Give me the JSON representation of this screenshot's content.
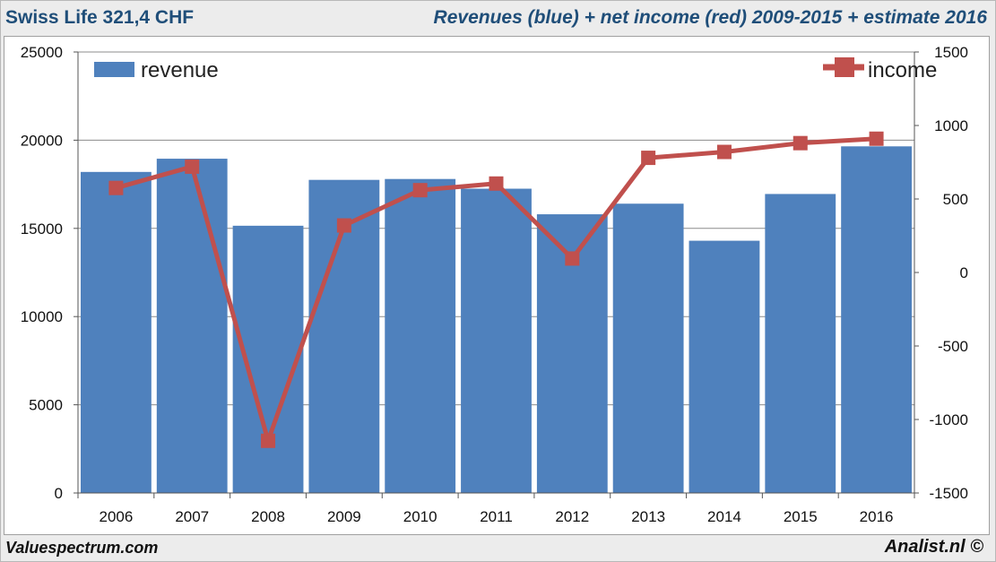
{
  "header": {
    "left_title": "Swiss Life 321,4 CHF",
    "right_title": "Revenues (blue) + net income (red) 2009-2015 + estimate 2016"
  },
  "footer": {
    "left": "Valuespectrum.com",
    "right": "Analist.nl ©"
  },
  "colors": {
    "bar": "#4f81bd",
    "line": "#c0504d",
    "grid": "#8c8c8c",
    "title": "#1f4e79"
  },
  "chart_data": {
    "type": "bar",
    "title": "Revenues (blue) + net income (red) 2009-2015 + estimate 2016",
    "categories": [
      "2006",
      "2007",
      "2008",
      "2009",
      "2010",
      "2011",
      "2012",
      "2013",
      "2014",
      "2015",
      "2016"
    ],
    "series": [
      {
        "name": "revenue",
        "type": "bar",
        "axis": "left",
        "values": [
          18200,
          18950,
          15150,
          17750,
          17800,
          17250,
          15800,
          16400,
          14300,
          16950,
          19650
        ]
      },
      {
        "name": "income",
        "type": "line",
        "axis": "right",
        "values": [
          575,
          720,
          -1145,
          320,
          560,
          605,
          95,
          780,
          820,
          880,
          910
        ]
      }
    ],
    "y_left": {
      "min": 0,
      "max": 25000,
      "ticks": [
        "0",
        "5000",
        "10000",
        "15000",
        "20000",
        "25000"
      ],
      "tick_values": [
        0,
        5000,
        10000,
        15000,
        20000,
        25000
      ]
    },
    "y_right": {
      "min": -1500,
      "max": 1500,
      "ticks": [
        "-1500",
        "-1000",
        "-500",
        "0",
        "500",
        "1000",
        "1500"
      ],
      "tick_values": [
        -1500,
        -1000,
        -500,
        0,
        500,
        1000,
        1500
      ]
    },
    "grid": true,
    "legend": [
      "revenue",
      "income"
    ]
  }
}
